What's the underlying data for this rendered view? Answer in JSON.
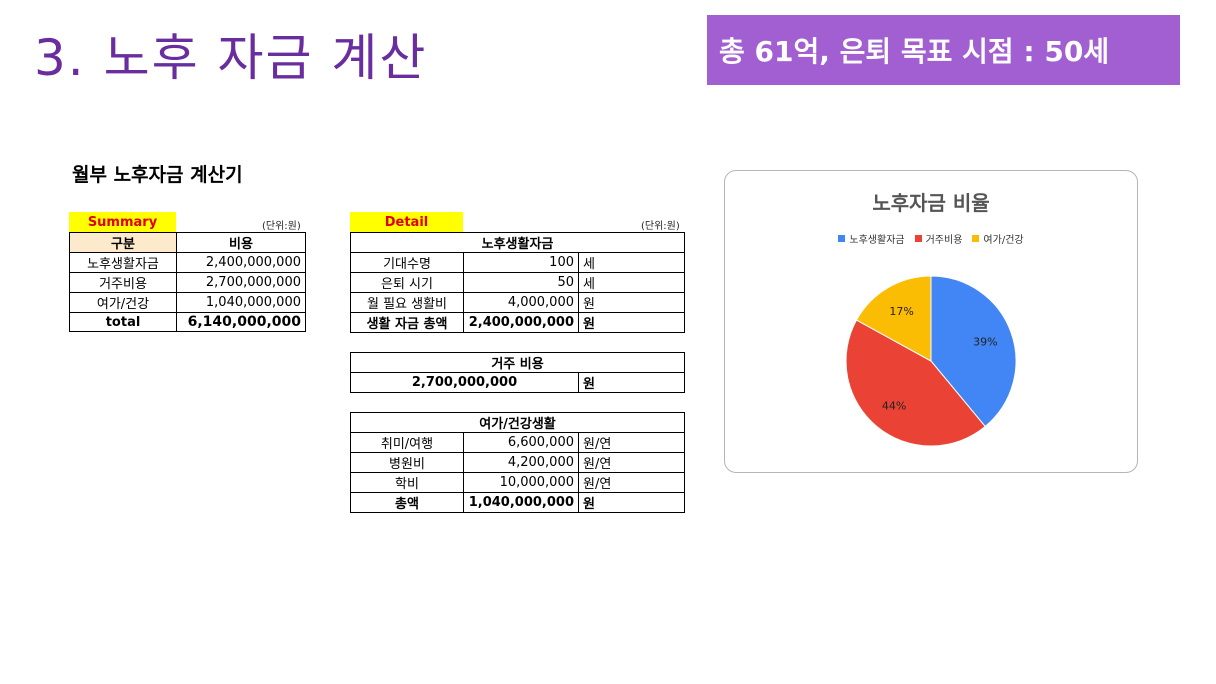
{
  "slide": {
    "title": "3. 노후 자금 계산",
    "banner": "총 61억, 은퇴 목표 시점 : 50세",
    "calc_title": "월부 노후자금 계산기"
  },
  "summary": {
    "tag": "Summary",
    "unit": "(단위:원)",
    "col_category": "구분",
    "col_cost": "비용",
    "rows": [
      {
        "label": "노후생활자금",
        "value": "2,400,000,000"
      },
      {
        "label": "거주비용",
        "value": "2,700,000,000"
      },
      {
        "label": "여가/건강",
        "value": "1,040,000,000"
      }
    ],
    "total_label": "total",
    "total_value": "6,140,000,000"
  },
  "detail": {
    "tag": "Detail",
    "unit": "(단위:원)",
    "living": {
      "header": "노후생활자금",
      "rows": [
        {
          "label": "기대수명",
          "value": "100",
          "unit": "세"
        },
        {
          "label": "은퇴 시기",
          "value": "50",
          "unit": "세"
        },
        {
          "label": "월 필요 생활비",
          "value": "4,000,000",
          "unit": "원"
        },
        {
          "label": "생활 자금 총액",
          "value": "2,400,000,000",
          "unit": "원"
        }
      ]
    },
    "housing": {
      "header": "거주 비용",
      "value": "2,700,000,000",
      "unit": "원"
    },
    "leisure": {
      "header": "여가/건강생활",
      "rows": [
        {
          "label": "취미/여행",
          "value": "6,600,000",
          "unit": "원/연"
        },
        {
          "label": "병원비",
          "value": "4,200,000",
          "unit": "원/연"
        },
        {
          "label": "학비",
          "value": "10,000,000",
          "unit": "원/연"
        },
        {
          "label": "총액",
          "value": "1,040,000,000",
          "unit": "원"
        }
      ]
    }
  },
  "chart_data": {
    "type": "pie",
    "title": "노후자금 비율",
    "legend_position": "top",
    "categories": [
      "노후생활자금",
      "거주비용",
      "여가/건강"
    ],
    "values": [
      39,
      44,
      17
    ],
    "labels": [
      "39%",
      "44%",
      "17%"
    ],
    "colors": [
      "#4285f4",
      "#ea4335",
      "#fbbc04"
    ]
  }
}
